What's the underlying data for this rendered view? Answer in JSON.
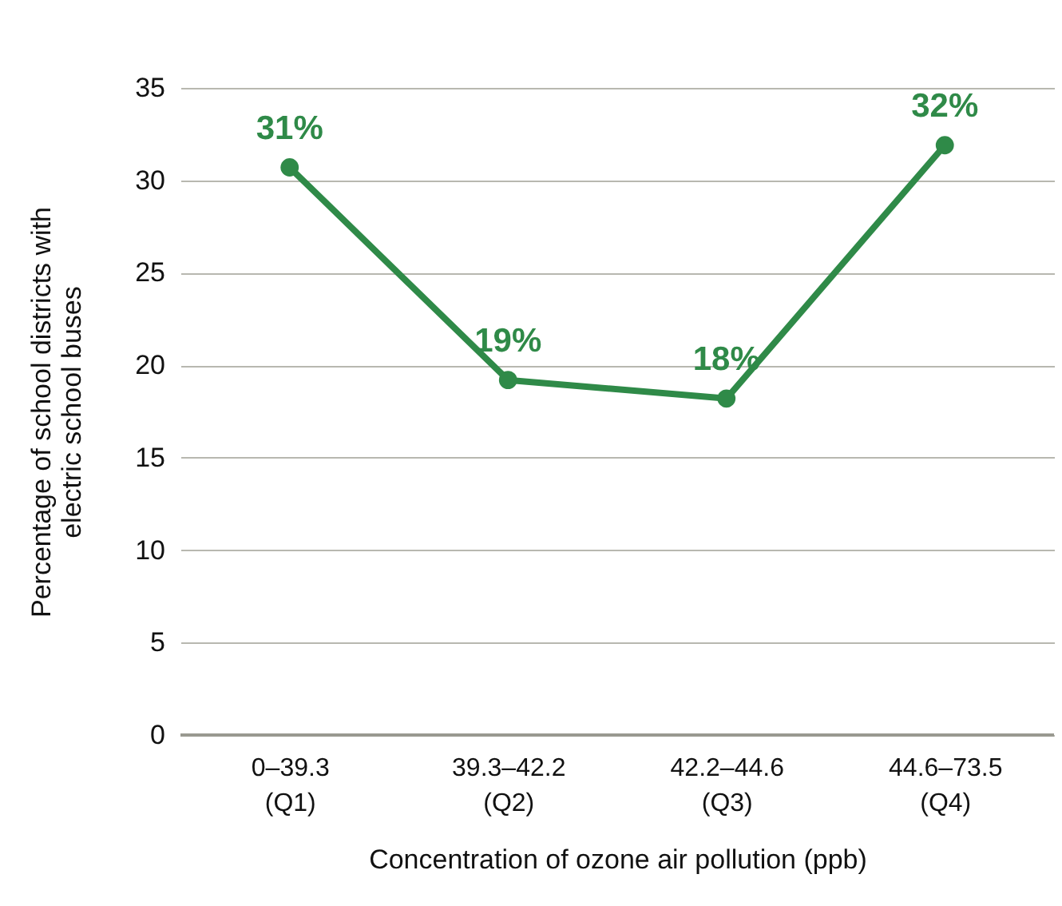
{
  "chart_data": {
    "type": "line",
    "xlabel": "Concentration of ozone air pollution (ppb)",
    "ylabel": "Percentage of school districts with\nelectric school buses",
    "categories": [
      "0–39.3\n(Q1)",
      "39.3–42.2\n(Q2)",
      "42.2–44.6\n(Q3)",
      "44.6–73.5\n(Q4)"
    ],
    "series": [
      {
        "color": "#2f8a48",
        "values": [
          30.7,
          19.2,
          18.2,
          31.9
        ],
        "value_labels": [
          "31%",
          "19%",
          "18%",
          "32%"
        ]
      }
    ],
    "ylim": [
      0,
      35
    ],
    "yticks": [
      0,
      5,
      10,
      15,
      20,
      25,
      30,
      35
    ],
    "grid": "y",
    "marker": "circle",
    "line_style": "solid"
  }
}
